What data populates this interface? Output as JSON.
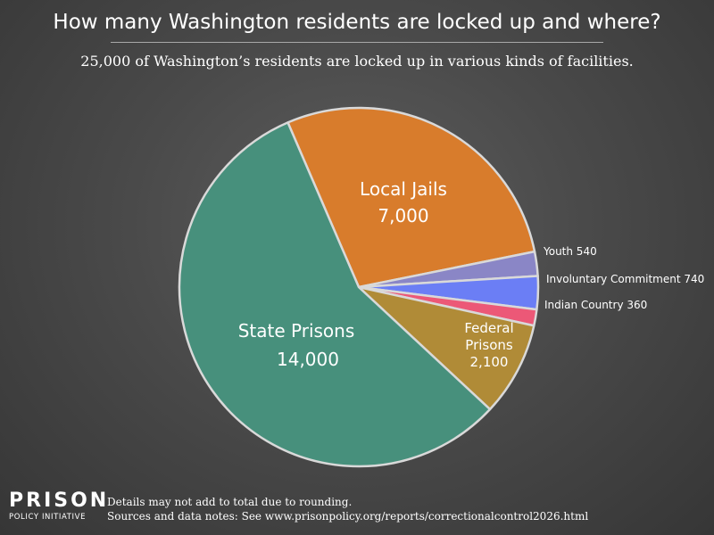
{
  "title": "How many Washington residents are locked up and where?",
  "subtitle": "25,000 of Washington’s residents are locked up in various kinds of facilities.",
  "footer": {
    "logo_line1": "PRISON",
    "logo_line2": "POLICY INITIATIVE",
    "note1": "Details may not add to total due to rounding.",
    "note2": "Sources and data notes: See www.prisonpolicy.org/reports/correctionalcontrol2026.html"
  },
  "chart_data": {
    "type": "pie",
    "title": "How many Washington residents are locked up and where?",
    "subtitle": "25,000 of Washington’s residents are locked up in various kinds of facilities.",
    "slices": [
      {
        "label": "Local Jails",
        "value": 7000,
        "value_label": "7,000",
        "color": "#d87c2c"
      },
      {
        "label": "Youth",
        "value": 540,
        "value_label": "540",
        "color": "#8a86c6"
      },
      {
        "label": "Involuntary Commitment",
        "value": 740,
        "value_label": "740",
        "color": "#6b7ef5"
      },
      {
        "label": "Indian Country",
        "value": 360,
        "value_label": "360",
        "color": "#ec5877"
      },
      {
        "label": "Federal Prisons",
        "value": 2100,
        "value_label": "2,100",
        "color": "#b08b37"
      },
      {
        "label": "State Prisons",
        "value": 14000,
        "value_label": "14,000",
        "color": "#47907c"
      }
    ]
  }
}
